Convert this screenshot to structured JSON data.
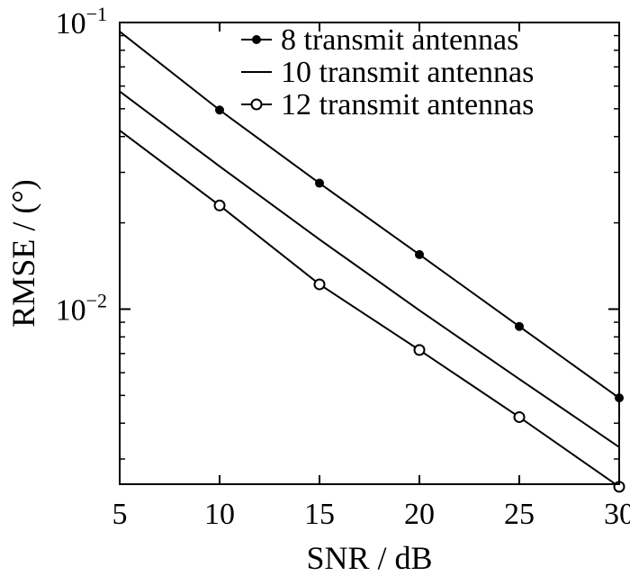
{
  "chart_data": {
    "type": "line",
    "title": "",
    "xlabel": "SNR / dB",
    "ylabel": "RMSE / (°)",
    "xlim": [
      5,
      30
    ],
    "ylim": [
      0.00245,
      0.1
    ],
    "yscale": "log",
    "grid": false,
    "legend_position": "top-right",
    "x_ticks": [
      5,
      10,
      15,
      20,
      25,
      30
    ],
    "x_tick_labels": [
      "5",
      "10",
      "15",
      "20",
      "25",
      "30"
    ],
    "y_ticks": [
      {
        "value": 0.1,
        "base": "10",
        "exponent": "−1"
      },
      {
        "value": 0.01,
        "base": "10",
        "exponent": "−2"
      }
    ],
    "x": [
      5,
      10,
      15,
      20,
      25,
      30
    ],
    "series": [
      {
        "name": "8 transmit antennas",
        "marker": "dot",
        "values": [
          0.093,
          0.0495,
          0.0275,
          0.0155,
          0.0087,
          0.0049
        ]
      },
      {
        "name": "10 transmit antennas",
        "marker": "none",
        "values": [
          0.0575,
          0.0315,
          0.0175,
          0.0099,
          0.0057,
          0.0033
        ]
      },
      {
        "name": "12 transmit antennas",
        "marker": "circle",
        "values": [
          0.042,
          0.023,
          0.0122,
          0.0072,
          0.0042,
          0.0024
        ]
      }
    ],
    "colors": {
      "line": "#000000",
      "background": "#ffffff"
    }
  }
}
